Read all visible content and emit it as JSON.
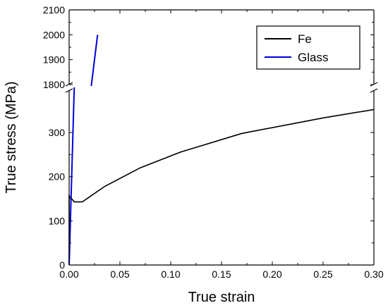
{
  "chart_data": {
    "type": "line",
    "xlabel": "True strain",
    "ylabel": "True stress (MPa)",
    "xlim": [
      0,
      0.3
    ],
    "ylim": [
      0,
      2100
    ],
    "axis_break": {
      "lower_range": [
        0,
        350
      ],
      "upper_range": [
        1800,
        2100
      ]
    },
    "x_ticks": [
      "0.00",
      "0.05",
      "0.10",
      "0.15",
      "0.20",
      "0.25",
      "0.30"
    ],
    "y_ticks_lower": [
      "0",
      "100",
      "200",
      "300"
    ],
    "y_ticks_upper": [
      "1800",
      "1900",
      "2000",
      "2100"
    ],
    "legend_position": "top-right",
    "series": [
      {
        "name": "Fe",
        "color": "#000000",
        "points": [
          [
            0.0,
            0
          ],
          [
            0.0,
            157
          ],
          [
            0.005,
            143
          ],
          [
            0.013,
            143
          ],
          [
            0.035,
            178
          ],
          [
            0.07,
            220
          ],
          [
            0.11,
            256
          ],
          [
            0.17,
            298
          ],
          [
            0.25,
            333
          ],
          [
            0.3,
            352
          ]
        ]
      },
      {
        "name": "Glass",
        "color": "#0000dd",
        "points": [
          [
            0.0,
            0
          ],
          [
            0.028,
            2000
          ]
        ]
      }
    ]
  }
}
